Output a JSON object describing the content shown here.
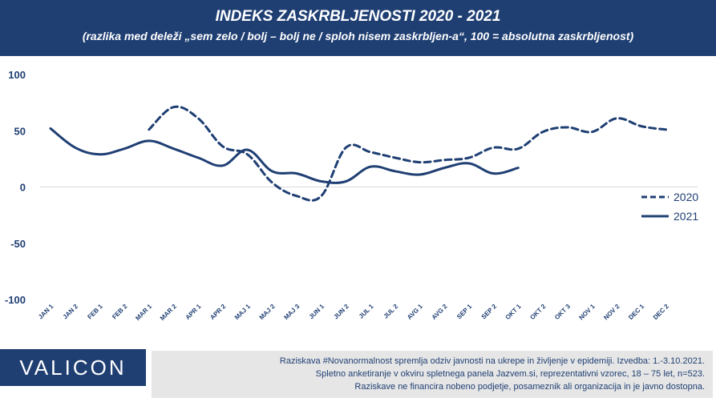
{
  "header": {
    "title": "INDEKS ZASKRBLJENOSTI 2020 - 2021",
    "subtitle": "(razlika med deleži „sem zelo / bolj – bolj  ne / sploh nisem zaskrbljen-a“, 100 = absolutna zaskrbljenost)",
    "background": "#1f3f73"
  },
  "chart_data": {
    "type": "line",
    "title": "INDEKS ZASKRBLJENOSTI 2020 - 2021",
    "subtitle": "(razlika med deleži „sem zelo / bolj – bolj  ne / sploh nisem zaskrbljen-a“, 100 = absolutna zaskrbljenost)",
    "categories": [
      "JAN 1",
      "JAN 2",
      "FEB 1",
      "FEB 2",
      "MAR 1",
      "MAR 2",
      "APR 1",
      "APR 2",
      "MAJ 1",
      "MAJ 2",
      "MAJ 3",
      "JUN 1",
      "JUN 2",
      "JUL 1",
      "JUL 2",
      "AVG 1",
      "AVG 2",
      "SEP 1",
      "SEP 2",
      "OKT 1",
      "OKT 2",
      "OKT 3",
      "NOV 1",
      "NOV 2",
      "DEC 1",
      "DEC 2"
    ],
    "ylim": [
      -100,
      100
    ],
    "yticks": [
      100,
      50,
      0,
      -50,
      -100
    ],
    "grid": false,
    "legend_position": "right",
    "series": [
      {
        "name": "2020",
        "style": "dashed",
        "color": "#1f3f73",
        "values": [
          null,
          null,
          null,
          null,
          51,
          71,
          61,
          36,
          29,
          4,
          -8,
          -8,
          35,
          31,
          26,
          22,
          24,
          26,
          35,
          34,
          49,
          53,
          49,
          61,
          54,
          51
        ]
      },
      {
        "name": "2021",
        "style": "solid",
        "color": "#1f3f73",
        "values": [
          52,
          35,
          29,
          34,
          41,
          34,
          26,
          19,
          33,
          14,
          12,
          5,
          5,
          18,
          14,
          11,
          17,
          21,
          12,
          17,
          null,
          null,
          null,
          null,
          null,
          null
        ]
      }
    ]
  },
  "footer": {
    "logo": "VALICON",
    "lines": [
      "Raziskava #Novanormalnost spremlja odziv javnosti na ukrepe in življenje v epidemiji. Izvedba: 1.-3.10.2021.",
      "Spletno anketiranje v okviru spletnega panela Jazvem.si, reprezentativni vzorec,  18 – 75 let, n=523.",
      "Raziskave ne financira nobeno podjetje, posameznik ali organizacija in je javno dostopna."
    ]
  }
}
